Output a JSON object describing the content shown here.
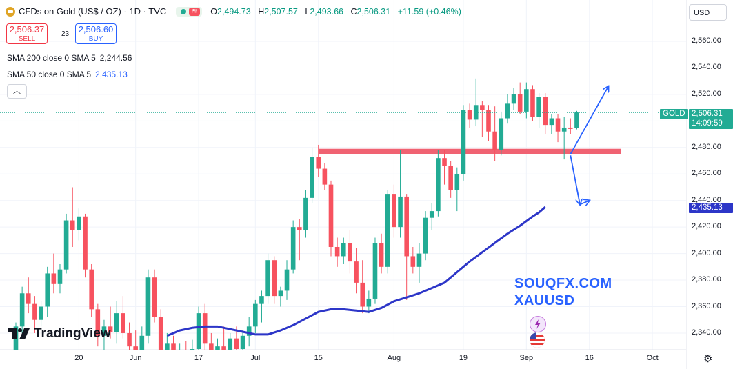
{
  "header": {
    "title": "CFDs on Gold (US$ / OZ) · 1D · TVC",
    "ohlc": {
      "o_label": "O",
      "o": "2,494.73",
      "h_label": "H",
      "h": "2,507.57",
      "l_label": "L",
      "l": "2,493.66",
      "c_label": "C",
      "c": "2,506.31",
      "change": "+11.59 (+0.46%)"
    }
  },
  "trade": {
    "sell_price": "2,506.37",
    "sell_label": "SELL",
    "spread": "23",
    "buy_price": "2,506.60",
    "buy_label": "BUY"
  },
  "indicators": {
    "sma200_label": "SMA 200 close 0 SMA 5",
    "sma200_value": "2,244.56",
    "sma50_label": "SMA 50 close 0 SMA 5",
    "sma50_value": "2,435.13"
  },
  "currency": "USD",
  "collapse_icon": "chevron-up-icon",
  "price_tags": {
    "symbol": "GOLD",
    "last": "2,506.31",
    "countdown": "14:09:59",
    "sma_tag": "2,435.13"
  },
  "watermark": {
    "line1": "SOUQFX.COM",
    "line2": "XAUUSD"
  },
  "logo": "TradingView",
  "colors": {
    "up": "#22ab94",
    "down": "#f7525f",
    "sma": "#2d36c8",
    "arrow": "#2962ff",
    "zone": "#f06272"
  },
  "chart_data": {
    "type": "candlestick",
    "ylim": [
      2330,
      2575
    ],
    "y_ticks": [
      2340,
      2360,
      2380,
      2400,
      2420,
      2440,
      2460,
      2480,
      2500,
      2520,
      2540,
      2560
    ],
    "y_tick_labels": [
      "2,340.00",
      "2,360.00",
      "2,380.00",
      "2,400.00",
      "2,420.00",
      "2,440.00",
      "2,460.00",
      "2,480.00",
      "2,500.00",
      "2,520.00",
      "2,540.00",
      "2,560.00"
    ],
    "x_tick_labels": [
      {
        "label": "20",
        "day": 10
      },
      {
        "label": "Jun",
        "day": 19
      },
      {
        "label": "17",
        "day": 29
      },
      {
        "label": "Jul",
        "day": 38
      },
      {
        "label": "15",
        "day": 48
      },
      {
        "label": "Aug",
        "day": 60
      },
      {
        "label": "19",
        "day": 71
      },
      {
        "label": "Sep",
        "day": 81
      },
      {
        "label": "16",
        "day": 91
      },
      {
        "label": "Oct",
        "day": 101
      }
    ],
    "candles": [
      {
        "o": 2325,
        "h": 2348,
        "l": 2315,
        "c": 2345
      },
      {
        "o": 2345,
        "h": 2375,
        "l": 2340,
        "c": 2370
      },
      {
        "o": 2370,
        "h": 2382,
        "l": 2355,
        "c": 2362
      },
      {
        "o": 2362,
        "h": 2368,
        "l": 2340,
        "c": 2350
      },
      {
        "o": 2350,
        "h": 2364,
        "l": 2345,
        "c": 2360
      },
      {
        "o": 2360,
        "h": 2390,
        "l": 2352,
        "c": 2385
      },
      {
        "o": 2385,
        "h": 2400,
        "l": 2370,
        "c": 2377
      },
      {
        "o": 2377,
        "h": 2392,
        "l": 2370,
        "c": 2388
      },
      {
        "o": 2388,
        "h": 2430,
        "l": 2385,
        "c": 2425
      },
      {
        "o": 2425,
        "h": 2450,
        "l": 2405,
        "c": 2418
      },
      {
        "o": 2418,
        "h": 2434,
        "l": 2410,
        "c": 2428
      },
      {
        "o": 2428,
        "h": 2430,
        "l": 2382,
        "c": 2388
      },
      {
        "o": 2388,
        "h": 2392,
        "l": 2352,
        "c": 2358
      },
      {
        "o": 2358,
        "h": 2362,
        "l": 2330,
        "c": 2338
      },
      {
        "o": 2338,
        "h": 2350,
        "l": 2325,
        "c": 2345
      },
      {
        "o": 2345,
        "h": 2360,
        "l": 2336,
        "c": 2341
      },
      {
        "o": 2341,
        "h": 2364,
        "l": 2332,
        "c": 2355
      },
      {
        "o": 2355,
        "h": 2368,
        "l": 2336,
        "c": 2340
      },
      {
        "o": 2340,
        "h": 2348,
        "l": 2318,
        "c": 2330
      },
      {
        "o": 2330,
        "h": 2342,
        "l": 2312,
        "c": 2322
      },
      {
        "o": 2322,
        "h": 2345,
        "l": 2318,
        "c": 2338
      },
      {
        "o": 2338,
        "h": 2388,
        "l": 2332,
        "c": 2382
      },
      {
        "o": 2382,
        "h": 2388,
        "l": 2348,
        "c": 2352
      },
      {
        "o": 2352,
        "h": 2358,
        "l": 2318,
        "c": 2322
      },
      {
        "o": 2322,
        "h": 2340,
        "l": 2315,
        "c": 2332
      },
      {
        "o": 2332,
        "h": 2338,
        "l": 2310,
        "c": 2318
      },
      {
        "o": 2318,
        "h": 2332,
        "l": 2310,
        "c": 2326
      },
      {
        "o": 2326,
        "h": 2334,
        "l": 2312,
        "c": 2316
      },
      {
        "o": 2316,
        "h": 2335,
        "l": 2305,
        "c": 2328
      },
      {
        "o": 2328,
        "h": 2360,
        "l": 2322,
        "c": 2355
      },
      {
        "o": 2355,
        "h": 2362,
        "l": 2326,
        "c": 2332
      },
      {
        "o": 2332,
        "h": 2340,
        "l": 2312,
        "c": 2320
      },
      {
        "o": 2320,
        "h": 2336,
        "l": 2310,
        "c": 2330
      },
      {
        "o": 2330,
        "h": 2345,
        "l": 2320,
        "c": 2326
      },
      {
        "o": 2326,
        "h": 2340,
        "l": 2310,
        "c": 2336
      },
      {
        "o": 2336,
        "h": 2345,
        "l": 2322,
        "c": 2328
      },
      {
        "o": 2328,
        "h": 2342,
        "l": 2315,
        "c": 2338
      },
      {
        "o": 2338,
        "h": 2352,
        "l": 2330,
        "c": 2345
      },
      {
        "o": 2345,
        "h": 2365,
        "l": 2340,
        "c": 2362
      },
      {
        "o": 2362,
        "h": 2372,
        "l": 2348,
        "c": 2368
      },
      {
        "o": 2368,
        "h": 2400,
        "l": 2362,
        "c": 2395
      },
      {
        "o": 2395,
        "h": 2398,
        "l": 2362,
        "c": 2368
      },
      {
        "o": 2368,
        "h": 2375,
        "l": 2360,
        "c": 2372
      },
      {
        "o": 2372,
        "h": 2395,
        "l": 2365,
        "c": 2388
      },
      {
        "o": 2388,
        "h": 2425,
        "l": 2385,
        "c": 2420
      },
      {
        "o": 2420,
        "h": 2426,
        "l": 2395,
        "c": 2418
      },
      {
        "o": 2418,
        "h": 2448,
        "l": 2412,
        "c": 2442
      },
      {
        "o": 2442,
        "h": 2480,
        "l": 2438,
        "c": 2473
      },
      {
        "o": 2473,
        "h": 2482,
        "l": 2458,
        "c": 2464
      },
      {
        "o": 2464,
        "h": 2468,
        "l": 2448,
        "c": 2452
      },
      {
        "o": 2452,
        "h": 2455,
        "l": 2398,
        "c": 2405
      },
      {
        "o": 2405,
        "h": 2412,
        "l": 2390,
        "c": 2398
      },
      {
        "o": 2398,
        "h": 2412,
        "l": 2392,
        "c": 2408
      },
      {
        "o": 2408,
        "h": 2418,
        "l": 2385,
        "c": 2394
      },
      {
        "o": 2394,
        "h": 2404,
        "l": 2370,
        "c": 2378
      },
      {
        "o": 2378,
        "h": 2395,
        "l": 2355,
        "c": 2360
      },
      {
        "o": 2360,
        "h": 2372,
        "l": 2355,
        "c": 2366
      },
      {
        "o": 2366,
        "h": 2412,
        "l": 2362,
        "c": 2408
      },
      {
        "o": 2408,
        "h": 2415,
        "l": 2385,
        "c": 2390
      },
      {
        "o": 2390,
        "h": 2448,
        "l": 2385,
        "c": 2445
      },
      {
        "o": 2445,
        "h": 2452,
        "l": 2412,
        "c": 2420
      },
      {
        "o": 2420,
        "h": 2478,
        "l": 2412,
        "c": 2443
      },
      {
        "o": 2443,
        "h": 2445,
        "l": 2365,
        "c": 2398
      },
      {
        "o": 2398,
        "h": 2405,
        "l": 2385,
        "c": 2390
      },
      {
        "o": 2390,
        "h": 2408,
        "l": 2378,
        "c": 2400
      },
      {
        "o": 2400,
        "h": 2432,
        "l": 2395,
        "c": 2427
      },
      {
        "o": 2427,
        "h": 2438,
        "l": 2418,
        "c": 2432
      },
      {
        "o": 2432,
        "h": 2478,
        "l": 2428,
        "c": 2472
      },
      {
        "o": 2472,
        "h": 2478,
        "l": 2452,
        "c": 2466
      },
      {
        "o": 2466,
        "h": 2470,
        "l": 2442,
        "c": 2448
      },
      {
        "o": 2448,
        "h": 2465,
        "l": 2432,
        "c": 2460
      },
      {
        "o": 2460,
        "h": 2512,
        "l": 2455,
        "c": 2508
      },
      {
        "o": 2508,
        "h": 2513,
        "l": 2495,
        "c": 2501
      },
      {
        "o": 2501,
        "h": 2532,
        "l": 2496,
        "c": 2512
      },
      {
        "o": 2512,
        "h": 2515,
        "l": 2488,
        "c": 2508
      },
      {
        "o": 2508,
        "h": 2512,
        "l": 2485,
        "c": 2492
      },
      {
        "o": 2492,
        "h": 2511,
        "l": 2470,
        "c": 2478
      },
      {
        "o": 2478,
        "h": 2507,
        "l": 2474,
        "c": 2502
      },
      {
        "o": 2502,
        "h": 2520,
        "l": 2498,
        "c": 2513
      },
      {
        "o": 2513,
        "h": 2525,
        "l": 2508,
        "c": 2520
      },
      {
        "o": 2520,
        "h": 2529,
        "l": 2505,
        "c": 2507
      },
      {
        "o": 2507,
        "h": 2529,
        "l": 2502,
        "c": 2524
      },
      {
        "o": 2524,
        "h": 2527,
        "l": 2500,
        "c": 2503
      },
      {
        "o": 2503,
        "h": 2521,
        "l": 2495,
        "c": 2518
      },
      {
        "o": 2518,
        "h": 2521,
        "l": 2490,
        "c": 2497
      },
      {
        "o": 2497,
        "h": 2505,
        "l": 2490,
        "c": 2502
      },
      {
        "o": 2502,
        "h": 2505,
        "l": 2484,
        "c": 2492
      },
      {
        "o": 2492,
        "h": 2503,
        "l": 2471,
        "c": 2495
      },
      {
        "o": 2495,
        "h": 2502,
        "l": 2490,
        "c": 2494
      },
      {
        "o": 2494.73,
        "h": 2507.57,
        "l": 2493.66,
        "c": 2506.31
      }
    ],
    "sma50": [
      [
        24,
        2338
      ],
      [
        26,
        2342
      ],
      [
        28,
        2344
      ],
      [
        30,
        2345
      ],
      [
        32,
        2345
      ],
      [
        34,
        2343
      ],
      [
        36,
        2341
      ],
      [
        38,
        2339
      ],
      [
        40,
        2339
      ],
      [
        42,
        2342
      ],
      [
        44,
        2346
      ],
      [
        46,
        2351
      ],
      [
        48,
        2356
      ],
      [
        50,
        2358
      ],
      [
        52,
        2358
      ],
      [
        54,
        2357
      ],
      [
        56,
        2356
      ],
      [
        58,
        2359
      ],
      [
        60,
        2364
      ],
      [
        62,
        2367
      ],
      [
        64,
        2370
      ],
      [
        66,
        2374
      ],
      [
        68,
        2378
      ],
      [
        70,
        2386
      ],
      [
        72,
        2394
      ],
      [
        74,
        2401
      ],
      [
        76,
        2408
      ],
      [
        78,
        2415
      ],
      [
        80,
        2421
      ],
      [
        82,
        2428
      ],
      [
        83,
        2431
      ],
      [
        84,
        2435.13
      ]
    ],
    "resistance_zone": {
      "x_start": 48,
      "x_end": 96,
      "y_low": 2475,
      "y_high": 2479
    },
    "arrows": [
      {
        "from": [
          88,
          2475
        ],
        "to": [
          94,
          2526
        ]
      },
      {
        "from": [
          88,
          2474
        ],
        "to": [
          89.5,
          2437
        ]
      },
      {
        "from": [
          89.5,
          2437
        ],
        "to": [
          91,
          2440
        ]
      }
    ],
    "last_price": 2506.31
  }
}
